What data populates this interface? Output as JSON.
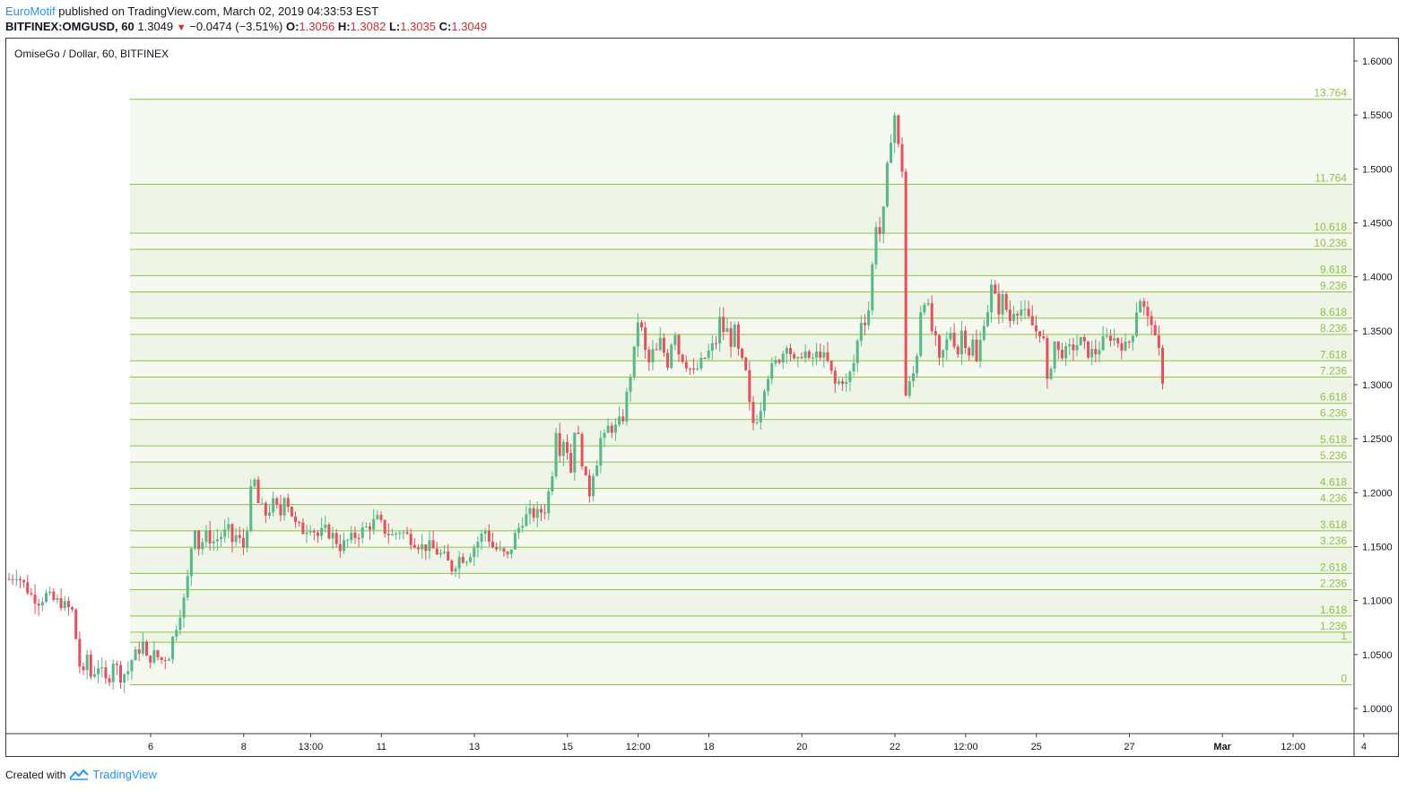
{
  "header": {
    "author": "EuroMotif",
    "published_text": "published on TradingView.com, March 02, 2019 04:33:53 EST",
    "symbol": "BITFINEX:OMGUSD, 60",
    "last": "1.3049",
    "change": "−0.0474 (−3.51%)",
    "o_label": "O:",
    "o_val": "1.3056",
    "h_label": "H:",
    "h_val": "1.3082",
    "l_label": "L:",
    "l_val": "1.3035",
    "c_label": "C:",
    "c_val": "1.3049"
  },
  "legend_title": "OmiseGo / Dollar, 60, BITFINEX",
  "footer": {
    "created_with": "Created with",
    "brand": "TradingView"
  },
  "colors": {
    "up": "#53b987",
    "down": "#eb4d5c",
    "fib_line": "#8bc34a",
    "fib_fill": "#f4f8ee",
    "fib_text": "#8bc34a"
  },
  "chart_data": {
    "type": "candlestick",
    "title": "OmiseGo / Dollar, 60, BITFINEX",
    "ylim": [
      0.98,
      1.615
    ],
    "y_ticks": [
      "1.6000",
      "1.5500",
      "1.5000",
      "1.4500",
      "1.4000",
      "1.3500",
      "1.3000",
      "1.2500",
      "1.2000",
      "1.1500",
      "1.1000",
      "1.0500",
      "1.0000"
    ],
    "y_tick_values": [
      1.6,
      1.55,
      1.5,
      1.45,
      1.4,
      1.35,
      1.3,
      1.25,
      1.2,
      1.15,
      1.1,
      1.05,
      1.0
    ],
    "x_ticks": [
      "6",
      "8",
      "13:00",
      "11",
      "13",
      "15",
      "12:00",
      "18",
      "20",
      "22",
      "12:00",
      "25",
      "27",
      "Mar",
      "12:00",
      "4"
    ],
    "x_tick_index": [
      20,
      45,
      63,
      82,
      107,
      132,
      151,
      170,
      195,
      220,
      239,
      258,
      283,
      308,
      327,
      346
    ],
    "x_bold": [
      "Mar"
    ],
    "fib_levels": [
      {
        "label": "0",
        "price": 1.022
      },
      {
        "label": "1",
        "price": 1.0614
      },
      {
        "label": "1.236",
        "price": 1.0707
      },
      {
        "label": "1.618",
        "price": 1.0857
      },
      {
        "label": "2.236",
        "price": 1.1101
      },
      {
        "label": "2.618",
        "price": 1.1252
      },
      {
        "label": "3.236",
        "price": 1.1495
      },
      {
        "label": "3.618",
        "price": 1.1646
      },
      {
        "label": "4.236",
        "price": 1.1889
      },
      {
        "label": "4.618",
        "price": 1.204
      },
      {
        "label": "5.236",
        "price": 1.2284
      },
      {
        "label": "5.618",
        "price": 1.2434
      },
      {
        "label": "6.236",
        "price": 1.2678
      },
      {
        "label": "6.618",
        "price": 1.2828
      },
      {
        "label": "7.236",
        "price": 1.3072
      },
      {
        "label": "7.618",
        "price": 1.3222
      },
      {
        "label": "8.236",
        "price": 1.3466
      },
      {
        "label": "8.618",
        "price": 1.3617
      },
      {
        "label": "9.236",
        "price": 1.386
      },
      {
        "label": "9.618",
        "price": 1.4011
      },
      {
        "label": "10.236",
        "price": 1.4255
      },
      {
        "label": "10.618",
        "price": 1.4405
      },
      {
        "label": "11.764",
        "price": 1.4857
      },
      {
        "label": "13.764",
        "price": 1.5645
      }
    ],
    "close_path": [
      [
        0,
        1.12
      ],
      [
        2,
        1.125
      ],
      [
        4,
        1.115
      ],
      [
        6,
        1.105
      ],
      [
        8,
        1.1
      ],
      [
        10,
        1.105
      ],
      [
        12,
        1.1
      ],
      [
        14,
        1.098
      ],
      [
        15,
        1.095
      ],
      [
        17,
        1.09
      ],
      [
        19,
        1.04
      ],
      [
        20,
        1.03
      ],
      [
        21,
        1.05
      ],
      [
        22,
        1.03
      ],
      [
        24,
        1.04
      ],
      [
        26,
        1.025
      ],
      [
        27,
        1.03
      ],
      [
        28,
        1.045
      ],
      [
        30,
        1.03
      ],
      [
        32,
        1.035
      ],
      [
        33,
        1.045
      ],
      [
        34,
        1.05
      ],
      [
        36,
        1.06
      ],
      [
        37,
        1.045
      ],
      [
        39,
        1.05
      ],
      [
        41,
        1.045
      ],
      [
        43,
        1.05
      ],
      [
        44,
        1.065
      ],
      [
        46,
        1.09
      ],
      [
        47,
        1.1
      ],
      [
        48,
        1.12
      ],
      [
        49,
        1.15
      ],
      [
        50,
        1.17
      ],
      [
        51,
        1.15
      ],
      [
        53,
        1.16
      ],
      [
        55,
        1.155
      ],
      [
        57,
        1.16
      ],
      [
        59,
        1.165
      ],
      [
        60,
        1.155
      ],
      [
        61,
        1.16
      ],
      [
        63,
        1.15
      ],
      [
        64,
        1.17
      ],
      [
        65,
        1.2
      ],
      [
        66,
        1.21
      ],
      [
        67,
        1.19
      ],
      [
        69,
        1.18
      ],
      [
        71,
        1.19
      ],
      [
        73,
        1.18
      ],
      [
        74,
        1.2
      ],
      [
        75,
        1.19
      ],
      [
        77,
        1.17
      ],
      [
        79,
        1.165
      ],
      [
        81,
        1.17
      ],
      [
        83,
        1.16
      ],
      [
        85,
        1.165
      ],
      [
        87,
        1.16
      ],
      [
        89,
        1.15
      ],
      [
        91,
        1.155
      ],
      [
        93,
        1.16
      ],
      [
        95,
        1.165
      ],
      [
        97,
        1.17
      ],
      [
        99,
        1.175
      ],
      [
        101,
        1.165
      ],
      [
        103,
        1.16
      ],
      [
        105,
        1.165
      ],
      [
        107,
        1.16
      ],
      [
        109,
        1.155
      ],
      [
        111,
        1.15
      ],
      [
        113,
        1.15
      ],
      [
        115,
        1.145
      ],
      [
        117,
        1.14
      ],
      [
        118,
        1.135
      ],
      [
        119,
        1.13
      ],
      [
        121,
        1.14
      ],
      [
        123,
        1.14
      ],
      [
        125,
        1.15
      ],
      [
        127,
        1.16
      ],
      [
        128,
        1.165
      ],
      [
        130,
        1.15
      ],
      [
        132,
        1.145
      ],
      [
        134,
        1.14
      ],
      [
        136,
        1.16
      ],
      [
        138,
        1.175
      ],
      [
        140,
        1.18
      ],
      [
        142,
        1.18
      ],
      [
        144,
        1.185
      ],
      [
        145,
        1.2
      ],
      [
        146,
        1.22
      ],
      [
        147,
        1.26
      ],
      [
        148,
        1.24
      ],
      [
        149,
        1.25
      ],
      [
        150,
        1.24
      ],
      [
        151,
        1.22
      ],
      [
        152,
        1.26
      ],
      [
        153,
        1.25
      ],
      [
        154,
        1.23
      ],
      [
        155,
        1.21
      ],
      [
        156,
        1.2
      ],
      [
        157,
        1.22
      ],
      [
        158,
        1.23
      ],
      [
        159,
        1.25
      ],
      [
        160,
        1.25
      ],
      [
        161,
        1.26
      ],
      [
        163,
        1.26
      ],
      [
        165,
        1.27
      ],
      [
        166,
        1.29
      ],
      [
        167,
        1.31
      ],
      [
        168,
        1.33
      ],
      [
        169,
        1.36
      ],
      [
        170,
        1.35
      ],
      [
        171,
        1.33
      ],
      [
        172,
        1.32
      ],
      [
        173,
        1.33
      ],
      [
        174,
        1.33
      ],
      [
        175,
        1.34
      ],
      [
        176,
        1.33
      ],
      [
        177,
        1.32
      ],
      [
        178,
        1.34
      ],
      [
        179,
        1.35
      ],
      [
        180,
        1.33
      ],
      [
        182,
        1.32
      ],
      [
        184,
        1.31
      ],
      [
        186,
        1.32
      ],
      [
        188,
        1.33
      ],
      [
        190,
        1.34
      ],
      [
        191,
        1.36
      ],
      [
        192,
        1.35
      ],
      [
        193,
        1.35
      ],
      [
        194,
        1.34
      ],
      [
        195,
        1.35
      ],
      [
        196,
        1.33
      ],
      [
        198,
        1.31
      ],
      [
        199,
        1.28
      ],
      [
        200,
        1.265
      ],
      [
        201,
        1.27
      ],
      [
        202,
        1.28
      ],
      [
        203,
        1.3
      ],
      [
        204,
        1.31
      ],
      [
        206,
        1.32
      ],
      [
        208,
        1.33
      ],
      [
        209,
        1.34
      ],
      [
        210,
        1.33
      ],
      [
        211,
        1.32
      ],
      [
        212,
        1.32
      ],
      [
        213,
        1.33
      ],
      [
        214,
        1.33
      ],
      [
        215,
        1.32
      ],
      [
        216,
        1.325
      ],
      [
        218,
        1.33
      ],
      [
        220,
        1.32
      ],
      [
        222,
        1.3
      ],
      [
        224,
        1.305
      ],
      [
        225,
        1.3
      ],
      [
        226,
        1.31
      ],
      [
        227,
        1.32
      ],
      [
        228,
        1.34
      ],
      [
        229,
        1.36
      ],
      [
        230,
        1.36
      ],
      [
        231,
        1.37
      ],
      [
        232,
        1.41
      ],
      [
        233,
        1.45
      ],
      [
        234,
        1.44
      ],
      [
        235,
        1.46
      ],
      [
        236,
        1.5
      ],
      [
        237,
        1.53
      ],
      [
        238,
        1.55
      ],
      [
        239,
        1.52
      ],
      [
        240,
        1.5
      ],
      [
        241,
        1.29
      ],
      [
        242,
        1.3
      ],
      [
        243,
        1.31
      ],
      [
        244,
        1.33
      ],
      [
        245,
        1.37
      ],
      [
        246,
        1.38
      ],
      [
        247,
        1.37
      ],
      [
        248,
        1.35
      ],
      [
        249,
        1.34
      ],
      [
        250,
        1.32
      ],
      [
        251,
        1.33
      ],
      [
        252,
        1.34
      ],
      [
        253,
        1.35
      ],
      [
        254,
        1.34
      ],
      [
        255,
        1.33
      ],
      [
        256,
        1.35
      ],
      [
        257,
        1.34
      ],
      [
        258,
        1.33
      ],
      [
        259,
        1.34
      ],
      [
        260,
        1.32
      ],
      [
        261,
        1.34
      ],
      [
        262,
        1.36
      ],
      [
        263,
        1.37
      ],
      [
        264,
        1.39
      ],
      [
        265,
        1.38
      ],
      [
        266,
        1.37
      ],
      [
        267,
        1.38
      ],
      [
        268,
        1.37
      ],
      [
        269,
        1.36
      ],
      [
        270,
        1.37
      ],
      [
        272,
        1.37
      ],
      [
        274,
        1.36
      ],
      [
        276,
        1.35
      ],
      [
        277,
        1.35
      ],
      [
        278,
        1.34
      ],
      [
        279,
        1.3
      ],
      [
        280,
        1.32
      ],
      [
        281,
        1.34
      ],
      [
        282,
        1.33
      ],
      [
        283,
        1.33
      ],
      [
        284,
        1.33
      ],
      [
        286,
        1.335
      ],
      [
        288,
        1.34
      ],
      [
        290,
        1.33
      ],
      [
        292,
        1.33
      ],
      [
        294,
        1.34
      ],
      [
        296,
        1.345
      ],
      [
        298,
        1.34
      ],
      [
        300,
        1.335
      ],
      [
        301,
        1.34
      ],
      [
        302,
        1.35
      ],
      [
        303,
        1.37
      ],
      [
        304,
        1.38
      ],
      [
        305,
        1.37
      ],
      [
        306,
        1.36
      ],
      [
        307,
        1.36
      ],
      [
        308,
        1.34
      ],
      [
        309,
        1.33
      ],
      [
        310,
        1.305
      ]
    ]
  }
}
